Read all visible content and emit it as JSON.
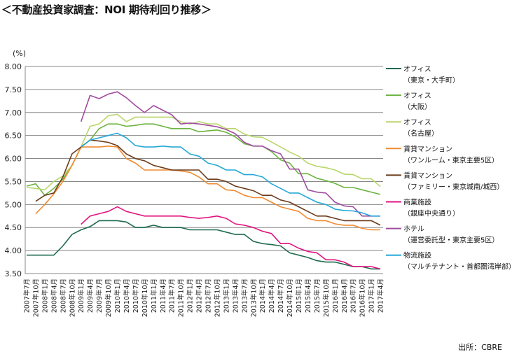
{
  "chart_data": {
    "type": "line",
    "title": "＜不動産投資家調査：NOI 期待利回り推移＞",
    "ylabel": "(%)",
    "ylim": [
      3.5,
      8.0
    ],
    "yticks": [
      "3.50",
      "4.00",
      "4.50",
      "5.00",
      "5.50",
      "6.00",
      "6.50",
      "7.00",
      "7.50",
      "8.00"
    ],
    "grid": true,
    "legend": "right",
    "source": "出所：CBRE",
    "categories": [
      "2007年7月",
      "2007年10月",
      "2008年1月",
      "2008年4月",
      "2008年7月",
      "2008年10月",
      "2009年1月",
      "2009年4月",
      "2009年7月",
      "2009年10月",
      "2010年1月",
      "2010年4月",
      "2010年7月",
      "2010年10月",
      "2011年1月",
      "2011年4月",
      "2011年7月",
      "2011年10月",
      "2012年1月",
      "2012年4月",
      "2012年7月",
      "2012年10月",
      "2013年1月",
      "2013年4月",
      "2013年7月",
      "2013年10月",
      "2014年1月",
      "2014年4月",
      "2014年7月",
      "2014年10月",
      "2015年1月",
      "2015年4月",
      "2015年7月",
      "2015年10月",
      "2016年1月",
      "2016年4月",
      "2016年7月",
      "2016年10月",
      "2017年1月",
      "2017年4月"
    ],
    "series": [
      {
        "name": "オフィス",
        "sub": "（東京・大手町）",
        "color": "#1f6b4e",
        "values": [
          3.9,
          3.9,
          3.9,
          3.9,
          4.1,
          4.35,
          4.45,
          4.52,
          4.65,
          4.65,
          4.65,
          4.62,
          4.5,
          4.5,
          4.55,
          4.5,
          4.5,
          4.5,
          4.45,
          4.45,
          4.45,
          4.45,
          4.4,
          4.35,
          4.35,
          4.2,
          4.15,
          4.13,
          4.1,
          3.95,
          3.9,
          3.85,
          3.78,
          3.75,
          3.75,
          3.7,
          3.65,
          3.65,
          3.6,
          3.6
        ]
      },
      {
        "name": "オフィス",
        "sub": "（大阪）",
        "color": "#6cb33f",
        "values": [
          5.4,
          5.45,
          5.2,
          5.35,
          5.55,
          5.85,
          6.25,
          6.4,
          6.65,
          6.75,
          6.75,
          6.7,
          6.72,
          6.75,
          6.75,
          6.7,
          6.65,
          6.65,
          6.65,
          6.58,
          6.6,
          6.62,
          6.57,
          6.47,
          6.32,
          6.27,
          6.27,
          6.15,
          5.97,
          5.9,
          5.67,
          5.67,
          5.57,
          5.52,
          5.46,
          5.37,
          5.37,
          5.32,
          5.27,
          5.22
        ]
      },
      {
        "name": "オフィス",
        "sub": "（名古屋）",
        "color": "#b8d66a",
        "values": [
          5.37,
          5.35,
          5.32,
          5.5,
          5.62,
          5.85,
          6.25,
          6.7,
          6.75,
          6.93,
          6.96,
          6.8,
          6.9,
          6.9,
          6.9,
          6.9,
          6.9,
          6.8,
          6.75,
          6.8,
          6.75,
          6.75,
          6.65,
          6.65,
          6.53,
          6.47,
          6.46,
          6.36,
          6.25,
          6.14,
          6.05,
          5.9,
          5.83,
          5.8,
          5.75,
          5.66,
          5.65,
          5.56,
          5.56,
          5.39
        ]
      },
      {
        "name": "賃貸マンション",
        "sub": "（ワンルーム・東京主要5区）",
        "color": "#f08a30",
        "values": [
          null,
          4.8,
          5.0,
          5.23,
          5.5,
          5.85,
          6.25,
          6.25,
          6.25,
          6.27,
          6.25,
          6.0,
          5.9,
          5.75,
          5.75,
          5.75,
          5.75,
          5.73,
          5.7,
          5.6,
          5.45,
          5.45,
          5.32,
          5.3,
          5.2,
          5.15,
          5.15,
          5.05,
          4.95,
          4.9,
          4.85,
          4.7,
          4.65,
          4.65,
          4.58,
          4.55,
          4.55,
          4.48,
          4.45,
          4.45
        ]
      },
      {
        "name": "賃貸マンション",
        "sub": "（ファミリー・東京城南/城西）",
        "color": "#6b3b1c",
        "values": [
          null,
          5.07,
          5.2,
          5.25,
          5.6,
          6.1,
          6.25,
          6.4,
          6.38,
          6.35,
          6.28,
          6.1,
          6.0,
          5.95,
          5.85,
          5.8,
          5.75,
          5.75,
          5.75,
          5.75,
          5.55,
          5.55,
          5.5,
          5.4,
          5.35,
          5.3,
          5.2,
          5.2,
          5.1,
          5.05,
          4.95,
          4.85,
          4.75,
          4.75,
          4.7,
          4.65,
          4.65,
          4.65,
          4.65,
          4.55
        ]
      },
      {
        "name": "商業施設",
        "sub": "（銀座中央通り）",
        "color": "#e0157f",
        "values": [
          null,
          null,
          null,
          null,
          null,
          null,
          4.57,
          4.75,
          4.8,
          4.85,
          4.95,
          4.85,
          4.8,
          4.75,
          4.75,
          4.75,
          4.75,
          4.75,
          4.72,
          4.7,
          4.72,
          4.75,
          4.7,
          4.58,
          4.55,
          4.5,
          4.42,
          4.37,
          4.15,
          4.15,
          4.05,
          3.98,
          3.95,
          3.8,
          3.8,
          3.75,
          3.65,
          3.65,
          3.65,
          3.6
        ]
      },
      {
        "name": "ホテル",
        "sub": "（運営委託型・東京主要5区）",
        "color": "#a04c9f",
        "values": [
          null,
          null,
          null,
          null,
          null,
          null,
          6.8,
          7.37,
          7.3,
          7.4,
          7.45,
          7.32,
          7.15,
          7.0,
          7.15,
          7.05,
          6.95,
          6.75,
          6.77,
          6.75,
          6.72,
          6.69,
          6.63,
          6.54,
          6.35,
          6.27,
          6.27,
          6.17,
          6.1,
          5.77,
          5.77,
          5.32,
          5.27,
          5.25,
          5.05,
          4.97,
          4.95,
          4.75,
          4.75,
          4.75
        ]
      },
      {
        "name": "物流施設",
        "sub": "（マルチテナント・首都圏湾岸部）",
        "color": "#25a8d8",
        "values": [
          null,
          null,
          null,
          null,
          null,
          null,
          6.25,
          6.4,
          6.45,
          6.5,
          6.55,
          6.45,
          6.28,
          6.25,
          6.25,
          6.27,
          6.25,
          6.25,
          6.1,
          6.05,
          5.9,
          5.85,
          5.75,
          5.75,
          5.65,
          5.65,
          5.6,
          5.45,
          5.35,
          5.25,
          5.25,
          5.15,
          5.05,
          5.0,
          4.9,
          4.87,
          4.86,
          4.82,
          4.75,
          4.75
        ]
      }
    ]
  }
}
